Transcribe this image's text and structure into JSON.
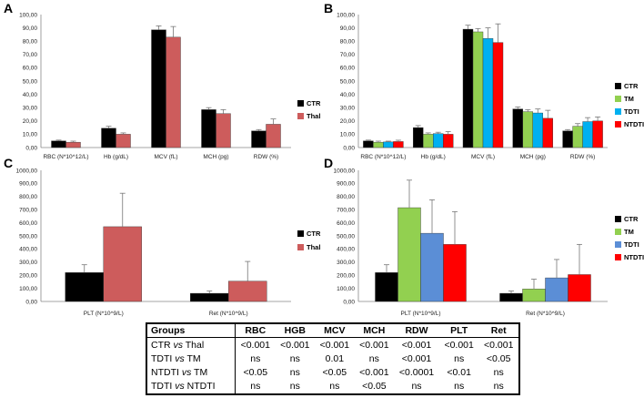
{
  "colors": {
    "CTR": "#000000",
    "Thal": "#cd5c5c",
    "TM": "#92d050",
    "TDTI": "#00b0f0",
    "NTDTI": "#ff0000",
    "TDTI_D": "#5b8ed6"
  },
  "chart_data": [
    {
      "panel": "A",
      "type": "bar",
      "categories": [
        "RBC (N*10^12/L)",
        "Hb (g/dL)",
        "MCV (fL)",
        "MCH (pg)",
        "RDW (%)"
      ],
      "ylim": [
        0,
        100
      ],
      "yticks": [
        "0,00",
        "10,00",
        "20,00",
        "30,00",
        "40,00",
        "50,00",
        "60,00",
        "70,00",
        "80,00",
        "90,00",
        "100,00"
      ],
      "series": [
        {
          "name": "CTR",
          "values": [
            5,
            14.5,
            88.5,
            28.5,
            12.5
          ],
          "errors": [
            0.6,
            1.5,
            3,
            1.5,
            1
          ]
        },
        {
          "name": "Thal",
          "values": [
            4,
            10,
            83,
            25.5,
            17.5
          ],
          "errors": [
            0.8,
            1,
            8,
            3,
            4
          ]
        }
      ]
    },
    {
      "panel": "B",
      "type": "bar",
      "categories": [
        "RBC (N*10^12/L)",
        "Hb (g/dL)",
        "MCV (fL)",
        "MCH (pg)",
        "RDW (%)"
      ],
      "ylim": [
        0,
        100
      ],
      "yticks": [
        "0,00",
        "10,00",
        "20,00",
        "30,00",
        "40,00",
        "50,00",
        "60,00",
        "70,00",
        "80,00",
        "90,00",
        "100,00"
      ],
      "series": [
        {
          "name": "CTR",
          "values": [
            5,
            15,
            89,
            29,
            12.5
          ],
          "errors": [
            0.6,
            1.5,
            3,
            1.5,
            1
          ]
        },
        {
          "name": "TM",
          "values": [
            4,
            10,
            87,
            27,
            16
          ],
          "errors": [
            0.8,
            1,
            2.5,
            1.5,
            2
          ]
        },
        {
          "name": "TDTI",
          "values": [
            4.2,
            10.5,
            82,
            26,
            19.5
          ],
          "errors": [
            0.6,
            1,
            8,
            3,
            3
          ]
        },
        {
          "name": "NTDTI",
          "values": [
            4.5,
            10,
            79,
            22,
            20
          ],
          "errors": [
            1,
            2,
            14,
            6,
            3
          ]
        }
      ]
    },
    {
      "panel": "C",
      "type": "bar",
      "categories": [
        "PLT (N*10^9/L)",
        "Ret (N*10^9/L)"
      ],
      "ylim": [
        0,
        1000
      ],
      "yticks": [
        "0,00",
        "100,00",
        "200,00",
        "300,00",
        "400,00",
        "500,00",
        "600,00",
        "700,00",
        "800,00",
        "900,00",
        "1000,00"
      ],
      "series": [
        {
          "name": "CTR",
          "values": [
            220,
            62
          ],
          "errors": [
            60,
            18
          ]
        },
        {
          "name": "Thal",
          "values": [
            570,
            155
          ],
          "errors": [
            255,
            150
          ]
        }
      ]
    },
    {
      "panel": "D",
      "type": "bar",
      "categories": [
        "PLT (N*10^9/L)",
        "Ret (N*10^9/L)"
      ],
      "ylim": [
        0,
        1000
      ],
      "yticks": [
        "0,00",
        "100,00",
        "200,00",
        "300,00",
        "400,00",
        "500,00",
        "600,00",
        "700,00",
        "800,00",
        "900,00",
        "1000,00"
      ],
      "series": [
        {
          "name": "CTR",
          "values": [
            220,
            62
          ],
          "errors": [
            60,
            18
          ]
        },
        {
          "name": "TM",
          "values": [
            715,
            95
          ],
          "errors": [
            210,
            75
          ]
        },
        {
          "name": "TDTI",
          "values": [
            520,
            180
          ],
          "errors": [
            255,
            140
          ]
        },
        {
          "name": "NTDTI",
          "values": [
            435,
            205
          ],
          "errors": [
            250,
            230
          ]
        }
      ]
    }
  ],
  "table": {
    "headers": [
      "Groups",
      "RBC",
      "HGB",
      "MCV",
      "MCH",
      "RDW",
      "PLT",
      "Ret"
    ],
    "rows": [
      {
        "g1": "CTR ",
        "vs": "vs",
        "g2": " Thal",
        "cells": [
          "<0.001",
          "<0.001",
          "<0.001",
          "<0.001",
          "<0.001",
          "<0.001",
          "<0.001"
        ]
      },
      {
        "g1": "TDTI ",
        "vs": "vs",
        "g2": " TM",
        "cells": [
          "ns",
          "ns",
          "0.01",
          "ns",
          "<0.001",
          "ns",
          "<0.05"
        ]
      },
      {
        "g1": "NTDTI ",
        "vs": "vs",
        "g2": " TM",
        "cells": [
          "<0.05",
          "ns",
          "<0.05",
          "<0.001",
          "<0.0001",
          "<0.01",
          "ns"
        ]
      },
      {
        "g1": "TDTI ",
        "vs": "vs",
        "g2": " NTDTI",
        "cells": [
          "ns",
          "ns",
          "ns",
          "<0.05",
          "ns",
          "ns",
          "ns"
        ]
      }
    ]
  }
}
